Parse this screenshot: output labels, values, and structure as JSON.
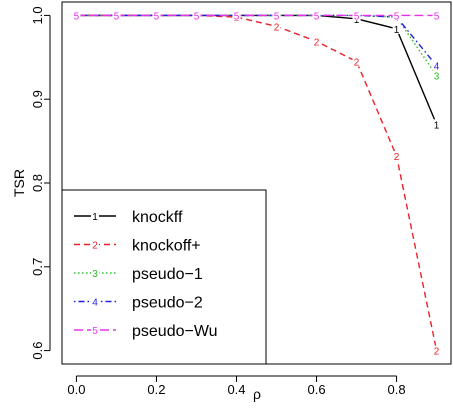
{
  "chart_data": {
    "type": "line",
    "xlabel": "ρ",
    "ylabel": "TSR",
    "xlim": [
      -0.036,
      0.936
    ],
    "ylim": [
      0.584,
      1.016
    ],
    "x_ticks": [
      0.0,
      0.2,
      0.4,
      0.6,
      0.8
    ],
    "x_tick_labels": [
      "0.0",
      "0.2",
      "0.4",
      "0.6",
      "0.8"
    ],
    "y_ticks": [
      0.6,
      0.7,
      0.8,
      0.9,
      1.0
    ],
    "y_tick_labels": [
      "0.6",
      "0.7",
      "0.8",
      "0.9",
      "1.0"
    ],
    "grid": false,
    "legend_position": "bottom-left",
    "x": [
      0.0,
      0.1,
      0.2,
      0.3,
      0.4,
      0.5,
      0.6,
      0.7,
      0.8,
      0.9
    ],
    "series": [
      {
        "name": "knockff",
        "marker": "1",
        "color": "#000000",
        "dash": "",
        "values": [
          1.0,
          1.0,
          1.0,
          1.0,
          1.0,
          1.0,
          1.0,
          0.996,
          0.984,
          0.87
        ]
      },
      {
        "name": "knockoff+",
        "marker": "2",
        "color": "#e8202a",
        "dash": "6,4",
        "values": [
          1.0,
          1.0,
          1.0,
          1.0,
          0.998,
          0.987,
          0.969,
          0.945,
          0.832,
          0.6
        ]
      },
      {
        "name": "pseudo−1",
        "marker": "3",
        "color": "#2db82d",
        "dash": "1.5,2.5",
        "values": [
          1.0,
          1.0,
          1.0,
          1.0,
          1.0,
          1.0,
          1.0,
          1.0,
          0.998,
          0.928
        ]
      },
      {
        "name": "pseudo−2",
        "marker": "4",
        "color": "#1f1fe0",
        "dash": "1.5,3,6,3",
        "values": [
          1.0,
          1.0,
          1.0,
          1.0,
          1.0,
          1.0,
          1.0,
          1.0,
          0.998,
          0.94
        ]
      },
      {
        "name": "pseudo−Wu",
        "marker": "5",
        "color": "#e832e8",
        "dash": "9,4",
        "values": [
          1.0,
          1.0,
          1.0,
          1.0,
          1.0,
          1.0,
          1.0,
          1.0,
          1.0,
          1.0
        ]
      }
    ]
  }
}
